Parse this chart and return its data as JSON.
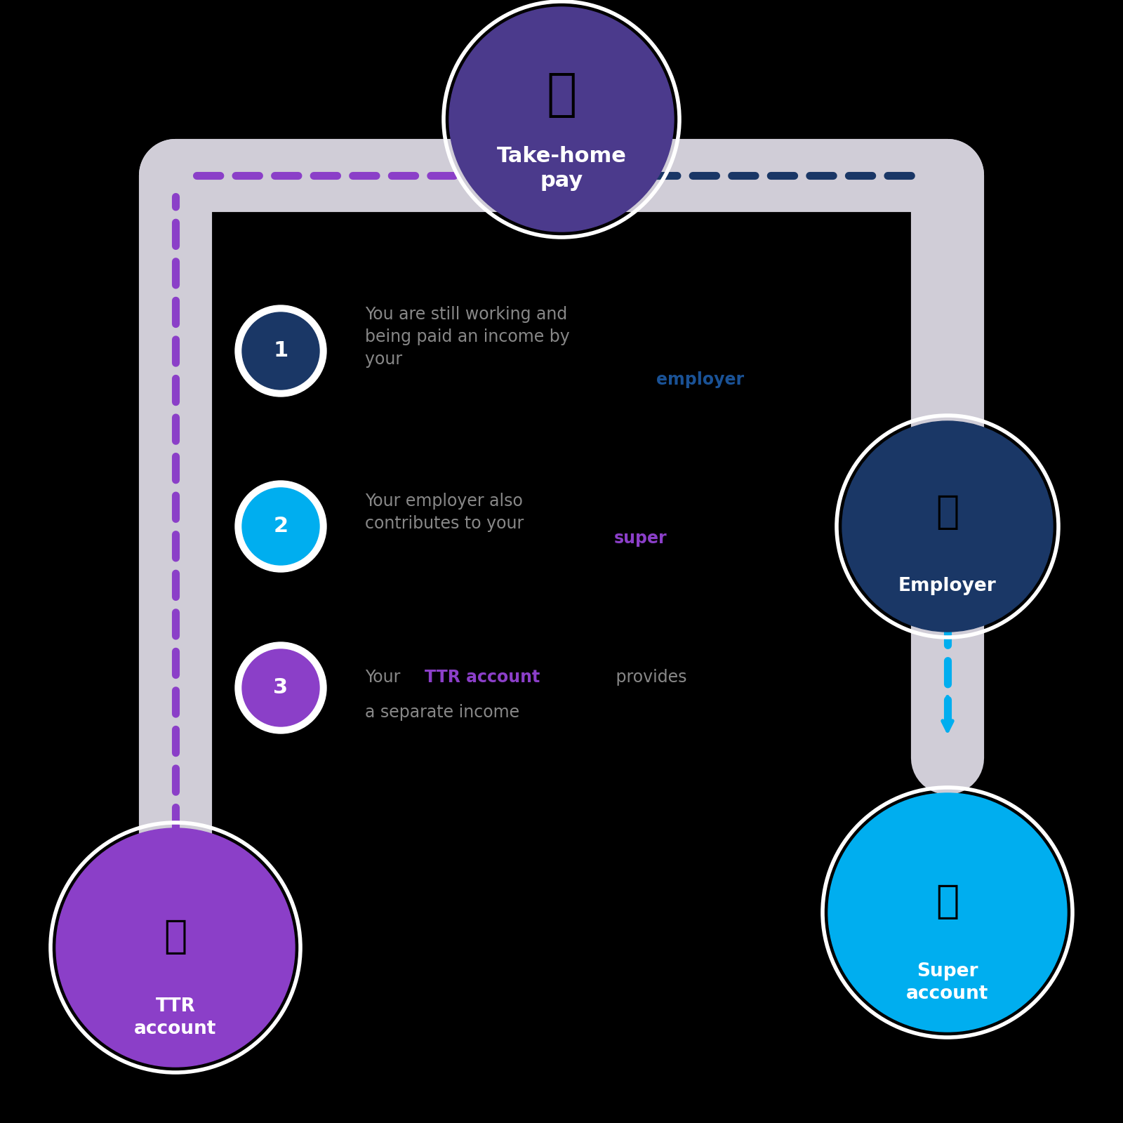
{
  "bg_color": "#000000",
  "title_circle_color": "#4B3A8C",
  "title_text": "Take-home\npay",
  "title_text_color": "#FFFFFF",
  "employer_circle_color": "#1A3766",
  "employer_text": "Employer",
  "employer_text_color": "#FFFFFF",
  "super_circle_color": "#00AEEF",
  "super_text": "Super\naccount",
  "super_text_color": "#FFFFFF",
  "ttr_circle_color": "#8B3FC8",
  "ttr_text": "TTR\naccount",
  "ttr_text_color": "#FFFFFF",
  "road_color": "#D0CDD7",
  "dashes_left_color": "#8B3FC8",
  "dashes_right_color": "#1A3766",
  "dashes_down_color": "#00AEEF",
  "step1_circle_color": "#1A3766",
  "step1_circle_border": "#FFFFFF",
  "step2_circle_color": "#00AEEF",
  "step2_circle_border": "#FFFFFF",
  "step3_circle_color": "#8B3FC8",
  "step3_circle_border": "#FFFFFF",
  "step_text_color": "#888888",
  "step1_highlight": "employer",
  "step1_highlight_color": "#1A5296",
  "step2_highlight": "super",
  "step2_highlight_color": "#8B3FC8",
  "step3_highlight": "TTR account",
  "step3_highlight_color": "#8B3FC8",
  "step1_text_plain": "You are still working and\nbeing paid an income by\nyour ",
  "step1_text_bold": "employer",
  "step2_text_plain": "Your employer also\ncontributes to your ",
  "step2_text_bold": "super",
  "step3_text_plain1": "Your ",
  "step3_text_bold": "TTR account",
  "step3_text_plain2": " provides\na separate income"
}
